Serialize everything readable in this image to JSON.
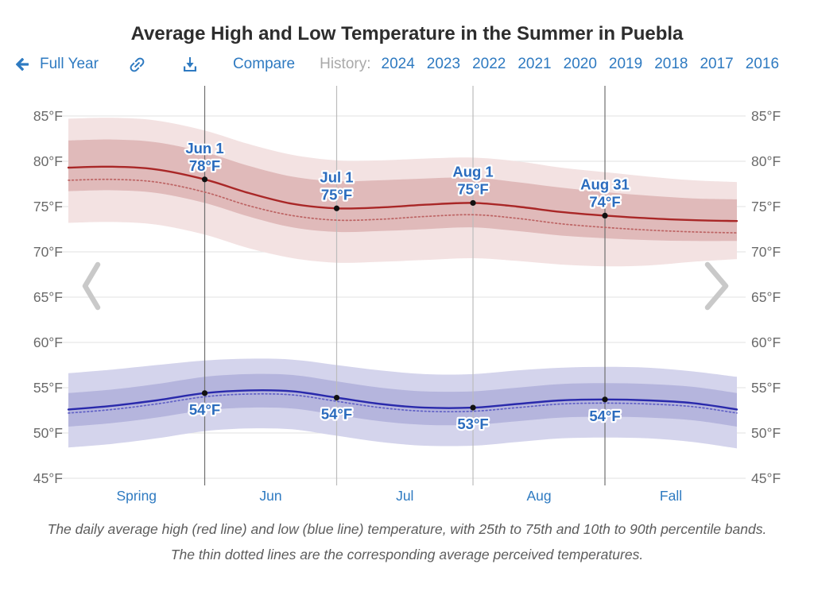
{
  "title": "Average High and Low Temperature in the Summer in Puebla",
  "toolbar": {
    "full_year_label": "Full Year",
    "compare_label": "Compare",
    "history_label": "History:",
    "years": [
      "2024",
      "2023",
      "2022",
      "2021",
      "2020",
      "2019",
      "2018",
      "2017",
      "2016"
    ]
  },
  "caption": "The daily average high (red line) and low (blue line) temperature, with 25th to 75th and 10th to 90th percentile bands. The thin dotted lines are the corresponding average perceived temperatures.",
  "colors": {
    "link_blue": "#2e7ac1",
    "annotation_blue": "#2b6cbe",
    "title_gray": "#2d2d2d",
    "axis_label_gray": "#6a6a6a",
    "history_gray": "#a9a9a9",
    "caption_gray": "#5c5c5c",
    "high_line": "#a92727",
    "high_perceived_line": "#bd6464",
    "high_band_inner": "#e0baba",
    "high_band_outer": "#f3e2e2",
    "low_line": "#2929ab",
    "low_perceived_line": "#6161c6",
    "low_band_inner": "#b5b5dd",
    "low_band_outer": "#d4d4ec",
    "gridline": "#e7e7e7",
    "date_line_strong": "#6f6f6f",
    "date_line_light": "#bcbcbc",
    "marker": "#111111",
    "chevron": "#c9c9c9"
  },
  "chart_data": {
    "type": "line",
    "title": "Average High and Low Temperature in the Summer in Puebla",
    "y_unit": "°F",
    "ylim": [
      45,
      88.3
    ],
    "y_ticks": [
      45,
      50,
      55,
      60,
      65,
      70,
      75,
      80,
      85
    ],
    "grid": true,
    "x_range": [
      "May 1",
      "Sep 30"
    ],
    "x_points": [
      "May 1",
      "May 11",
      "May 21",
      "Jun 1",
      "Jun 11",
      "Jun 21",
      "Jul 1",
      "Jul 11",
      "Jul 21",
      "Aug 1",
      "Aug 11",
      "Aug 21",
      "Aug 31",
      "Sep 10",
      "Sep 20",
      "Sep 30"
    ],
    "x_day_offsets": [
      0,
      10,
      20,
      31,
      41,
      51,
      61,
      71,
      81,
      92,
      102,
      112,
      122,
      132,
      142,
      152
    ],
    "x_axis_labels": [
      "Spring",
      "Jun",
      "Jul",
      "Aug",
      "Fall"
    ],
    "x_axis_label_boundaries_days": [
      0,
      31,
      61,
      92,
      122,
      152
    ],
    "date_gridlines": [
      {
        "date": "Jun 1",
        "day": 31,
        "strong": true
      },
      {
        "date": "Jul 1",
        "day": 61,
        "strong": false
      },
      {
        "date": "Aug 1",
        "day": 92,
        "strong": false
      },
      {
        "date": "Aug 31",
        "day": 122,
        "strong": true
      }
    ],
    "series": [
      {
        "id": "high_outer",
        "name": "High temperature 10th-90th percentile band",
        "type": "band",
        "color_key": "high_band_outer",
        "upper": [
          84.7,
          84.8,
          84.5,
          83.4,
          81.9,
          80.7,
          80.1,
          80.1,
          80.3,
          80.4,
          80.0,
          79.3,
          78.8,
          78.3,
          77.9,
          77.7
        ],
        "lower": [
          73.2,
          73.3,
          73.0,
          71.9,
          70.4,
          69.3,
          68.8,
          68.9,
          69.1,
          69.3,
          69.0,
          68.6,
          68.4,
          68.5,
          68.9,
          69.2
        ]
      },
      {
        "id": "high_inner",
        "name": "High temperature 25th-75th percentile band",
        "type": "band",
        "color_key": "high_band_inner",
        "upper": [
          82.3,
          82.4,
          82.1,
          81.0,
          79.5,
          78.3,
          77.8,
          77.9,
          78.1,
          78.2,
          77.7,
          77.1,
          76.6,
          76.2,
          75.9,
          75.8
        ],
        "lower": [
          76.7,
          76.8,
          76.5,
          75.4,
          73.9,
          72.7,
          72.2,
          72.3,
          72.5,
          72.7,
          72.3,
          71.8,
          71.5,
          71.3,
          71.2,
          71.2
        ]
      },
      {
        "id": "high_perceived",
        "name": "Average perceived high temperature",
        "type": "line",
        "style": "dotted",
        "color_key": "high_perceived_line",
        "values": [
          77.9,
          78.0,
          77.7,
          76.6,
          75.1,
          74.0,
          73.5,
          73.6,
          73.9,
          74.1,
          73.7,
          73.1,
          72.7,
          72.4,
          72.2,
          72.1
        ]
      },
      {
        "id": "high_mean",
        "name": "Average high temperature",
        "type": "line",
        "style": "solid",
        "color_key": "high_line",
        "values": [
          79.3,
          79.4,
          79.1,
          78.0,
          76.5,
          75.3,
          74.8,
          74.9,
          75.2,
          75.4,
          75.0,
          74.4,
          74.0,
          73.7,
          73.5,
          73.4
        ]
      },
      {
        "id": "low_outer",
        "name": "Low temperature 10th-90th percentile band",
        "type": "band",
        "color_key": "low_band_outer",
        "upper": [
          56.6,
          57.0,
          57.5,
          58.0,
          58.2,
          58.1,
          57.5,
          56.9,
          56.5,
          56.5,
          56.9,
          57.2,
          57.3,
          57.2,
          56.8,
          56.2
        ],
        "lower": [
          48.4,
          48.8,
          49.4,
          50.2,
          50.5,
          50.4,
          49.7,
          49.0,
          48.6,
          48.6,
          49.0,
          49.4,
          49.5,
          49.4,
          49.0,
          48.3
        ]
      },
      {
        "id": "low_inner",
        "name": "Low temperature 25th-75th percentile band",
        "type": "band",
        "color_key": "low_band_inner",
        "upper": [
          54.4,
          54.8,
          55.4,
          56.2,
          56.5,
          56.4,
          55.7,
          55.0,
          54.6,
          54.6,
          55.0,
          55.4,
          55.5,
          55.4,
          55.1,
          54.4
        ],
        "lower": [
          50.7,
          51.1,
          51.7,
          52.5,
          52.8,
          52.7,
          52.0,
          51.3,
          50.9,
          50.9,
          51.3,
          51.7,
          51.8,
          51.7,
          51.4,
          50.7
        ]
      },
      {
        "id": "low_perceived",
        "name": "Average perceived low temperature",
        "type": "line",
        "style": "dotted",
        "color_key": "low_perceived_line",
        "values": [
          52.2,
          52.6,
          53.2,
          54.0,
          54.3,
          54.2,
          53.5,
          52.8,
          52.4,
          52.4,
          52.8,
          53.2,
          53.3,
          53.2,
          52.9,
          52.2
        ]
      },
      {
        "id": "low_mean",
        "name": "Average low temperature",
        "type": "line",
        "style": "solid",
        "color_key": "low_line",
        "values": [
          52.6,
          53.0,
          53.6,
          54.4,
          54.7,
          54.6,
          53.9,
          53.2,
          52.8,
          52.8,
          53.2,
          53.6,
          53.7,
          53.6,
          53.3,
          52.6
        ]
      }
    ],
    "annotations": [
      {
        "series": "high",
        "date_label": "Jun 1",
        "day": 31,
        "value": 78,
        "label": "78°F"
      },
      {
        "series": "high",
        "date_label": "Jul 1",
        "day": 61,
        "value": 75,
        "label": "75°F"
      },
      {
        "series": "high",
        "date_label": "Aug 1",
        "day": 92,
        "value": 75,
        "label": "75°F"
      },
      {
        "series": "high",
        "date_label": "Aug 31",
        "day": 122,
        "value": 74,
        "label": "74°F"
      },
      {
        "series": "low",
        "date_label": "Jun 1",
        "day": 31,
        "value": 54,
        "label": "54°F"
      },
      {
        "series": "low",
        "date_label": "Jul 1",
        "day": 61,
        "value": 54,
        "label": "54°F"
      },
      {
        "series": "low",
        "date_label": "Aug 1",
        "day": 92,
        "value": 53,
        "label": "53°F"
      },
      {
        "series": "low",
        "date_label": "Aug 31",
        "day": 122,
        "value": 54,
        "label": "54°F"
      }
    ],
    "legend_position": "none"
  }
}
